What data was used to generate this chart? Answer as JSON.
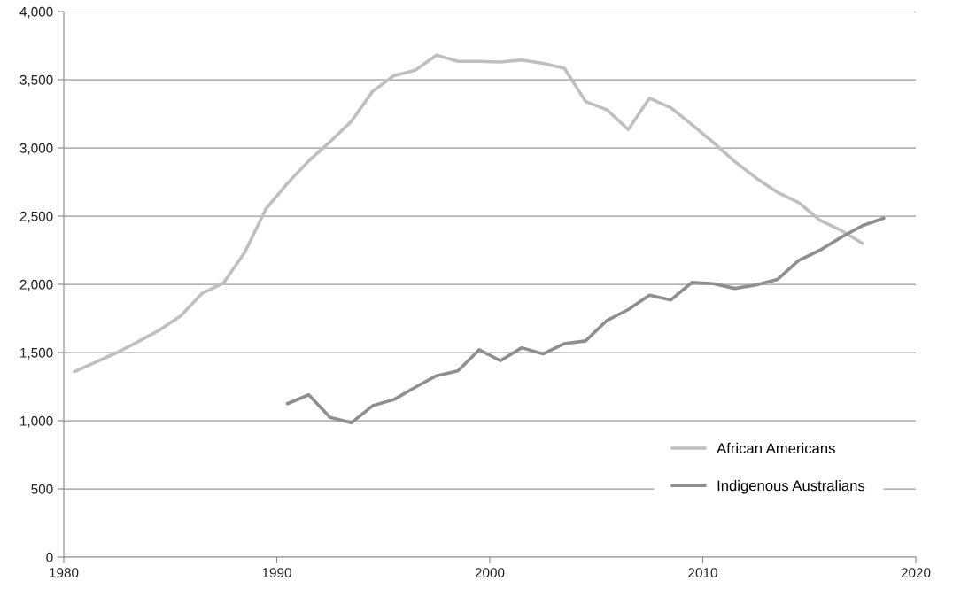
{
  "chart_data": {
    "type": "line",
    "series": [
      {
        "name": "African Americans",
        "color": "#bfbfbf",
        "x": [
          1980.5,
          1981.5,
          1982.5,
          1983.5,
          1984.5,
          1985.5,
          1986.5,
          1987.5,
          1988.5,
          1989.5,
          1990.5,
          1991.5,
          1992.5,
          1993.5,
          1994.5,
          1995.5,
          1996.5,
          1997.5,
          1998.5,
          1999.5,
          2000.5,
          2001.5,
          2002.5,
          2003.5,
          2004.5,
          2005.5,
          2006.5,
          2007.5,
          2008.5,
          2009.5,
          2010.5,
          2011.5,
          2012.5,
          2013.5,
          2014.5,
          2015.5,
          2016.5,
          2017.5
        ],
        "values": [
          1360,
          1430,
          1500,
          1580,
          1665,
          1770,
          1935,
          2010,
          2235,
          2555,
          2740,
          2905,
          3045,
          3195,
          3415,
          3530,
          3570,
          3680,
          3635,
          3635,
          3630,
          3645,
          3620,
          3585,
          3340,
          3280,
          3135,
          3365,
          3295,
          3170,
          3040,
          2900,
          2780,
          2675,
          2600,
          2470,
          2395,
          2300
        ]
      },
      {
        "name": "Indigenous Australians",
        "color": "#8f8f8f",
        "x": [
          1990.5,
          1991.5,
          1992.5,
          1993.5,
          1994.5,
          1995.5,
          1996.5,
          1997.5,
          1998.5,
          1999.5,
          2000.5,
          2001.5,
          2002.5,
          2003.5,
          2004.5,
          2005.5,
          2006.5,
          2007.5,
          2008.5,
          2009.5,
          2010.5,
          2011.5,
          2012.5,
          2013.5,
          2014.5,
          2015.5,
          2016.5,
          2017.5,
          2018.5
        ],
        "values": [
          1125,
          1190,
          1025,
          985,
          1110,
          1155,
          1245,
          1330,
          1365,
          1520,
          1440,
          1535,
          1490,
          1565,
          1585,
          1735,
          1815,
          1920,
          1885,
          2015,
          2005,
          1970,
          1995,
          2035,
          2175,
          2250,
          2345,
          2430,
          2485
        ]
      }
    ],
    "xlim": [
      1980,
      2020
    ],
    "xticks": [
      1980,
      1990,
      2000,
      2010,
      2020
    ],
    "ylim": [
      0,
      4000
    ],
    "yticks": [
      {
        "value": 0,
        "label": "0"
      },
      {
        "value": 500,
        "label": "500"
      },
      {
        "value": 1000,
        "label": "1,000"
      },
      {
        "value": 1500,
        "label": "1,500"
      },
      {
        "value": 2000,
        "label": "2,000"
      },
      {
        "value": 2500,
        "label": "2,500"
      },
      {
        "value": 3000,
        "label": "3,000"
      },
      {
        "value": 3500,
        "label": "3,500"
      },
      {
        "value": 4000,
        "label": "4,000"
      }
    ],
    "grid": "y",
    "legend": "bottom right",
    "marker": "none",
    "line_style": "solid"
  }
}
